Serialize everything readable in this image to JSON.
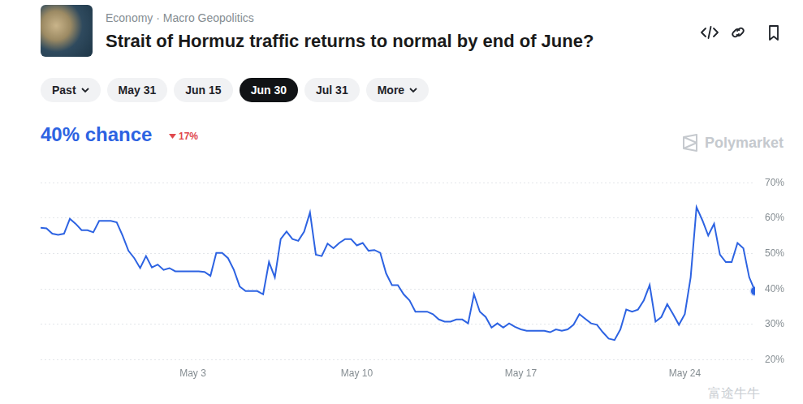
{
  "page": {
    "category": "Economy · Macro Geopolitics",
    "title": "Strait of Hormuz traffic returns to normal by end of June?",
    "tabs": [
      "Past",
      "May 31",
      "Jun 15",
      "Jun 30",
      "Jul 31",
      "More"
    ],
    "active_tab": "Jun 30",
    "headline": "40% chance",
    "change": "17%",
    "watermarks": [
      "Polymarket",
      "富途牛牛"
    ]
  },
  "chart_data": {
    "type": "line",
    "categories": [
      null,
      null,
      null,
      null,
      null,
      null,
      null,
      null,
      null,
      null,
      null,
      null,
      null,
      null,
      null,
      null,
      null,
      null,
      null,
      null,
      null,
      null,
      null,
      null,
      null,
      null,
      "May 3",
      null,
      null,
      null,
      null,
      null,
      null,
      null,
      null,
      null,
      null,
      null,
      null,
      null,
      null,
      null,
      null,
      null,
      null,
      null,
      null,
      null,
      null,
      null,
      null,
      null,
      null,
      null,
      "May 10",
      null,
      null,
      null,
      null,
      null,
      null,
      null,
      null,
      null,
      null,
      null,
      null,
      null,
      null,
      null,
      null,
      null,
      null,
      null,
      null,
      null,
      null,
      null,
      null,
      null,
      null,
      null,
      "May 17",
      null,
      null,
      null,
      null,
      null,
      null,
      null,
      null,
      null,
      null,
      null,
      null,
      null,
      null,
      null,
      null,
      null,
      null,
      null,
      null,
      null,
      null,
      null,
      null,
      null,
      null,
      null,
      "May 24",
      null,
      null,
      null,
      null,
      null,
      null,
      null,
      null,
      null,
      null,
      null,
      null
    ],
    "values": [
      57.3,
      57.1,
      55.6,
      55.3,
      55.6,
      59.8,
      58.4,
      56.6,
      56.6,
      56.0,
      59.2,
      59.2,
      59.2,
      58.8,
      55.1,
      50.8,
      48.7,
      45.9,
      49.3,
      46.1,
      46.9,
      45.4,
      45.9,
      45.0,
      45.0,
      45.0,
      45.0,
      45.0,
      44.8,
      43.7,
      50.2,
      50.2,
      48.7,
      45.4,
      40.7,
      39.4,
      39.4,
      39.4,
      38.5,
      47.6,
      43.3,
      54.1,
      56.2,
      54.1,
      53.6,
      56.2,
      61.6,
      49.7,
      49.3,
      52.8,
      51.5,
      53.0,
      54.1,
      54.1,
      52.3,
      53.0,
      50.8,
      51.0,
      50.2,
      44.4,
      41.1,
      41.1,
      38.5,
      36.8,
      33.6,
      33.6,
      33.6,
      32.9,
      31.4,
      30.8,
      30.8,
      31.4,
      31.4,
      30.3,
      38.5,
      33.6,
      32.1,
      29.1,
      30.3,
      29.1,
      30.3,
      29.3,
      28.6,
      28.2,
      28.2,
      28.2,
      28.2,
      27.8,
      28.6,
      28.2,
      28.6,
      29.9,
      32.9,
      31.6,
      30.3,
      29.9,
      27.8,
      26.0,
      25.6,
      28.6,
      34.2,
      33.6,
      34.2,
      36.8,
      41.1,
      30.8,
      32.1,
      35.7,
      32.9,
      29.9,
      32.9,
      43.3,
      63.1,
      59.4,
      55.1,
      58.4,
      49.7,
      47.6,
      47.6,
      53.0,
      51.5,
      43.3,
      39.4
    ],
    "color": "#2d63e2",
    "marker": "last",
    "ylim": [
      20,
      70
    ],
    "yticks": [
      {
        "value": 20,
        "label": "20%"
      },
      {
        "value": 30,
        "label": "30%"
      },
      {
        "value": 40,
        "label": "40%"
      },
      {
        "value": 50,
        "label": "50%"
      },
      {
        "value": 60,
        "label": "60%"
      },
      {
        "value": 70,
        "label": "70%"
      }
    ],
    "grid": true
  }
}
